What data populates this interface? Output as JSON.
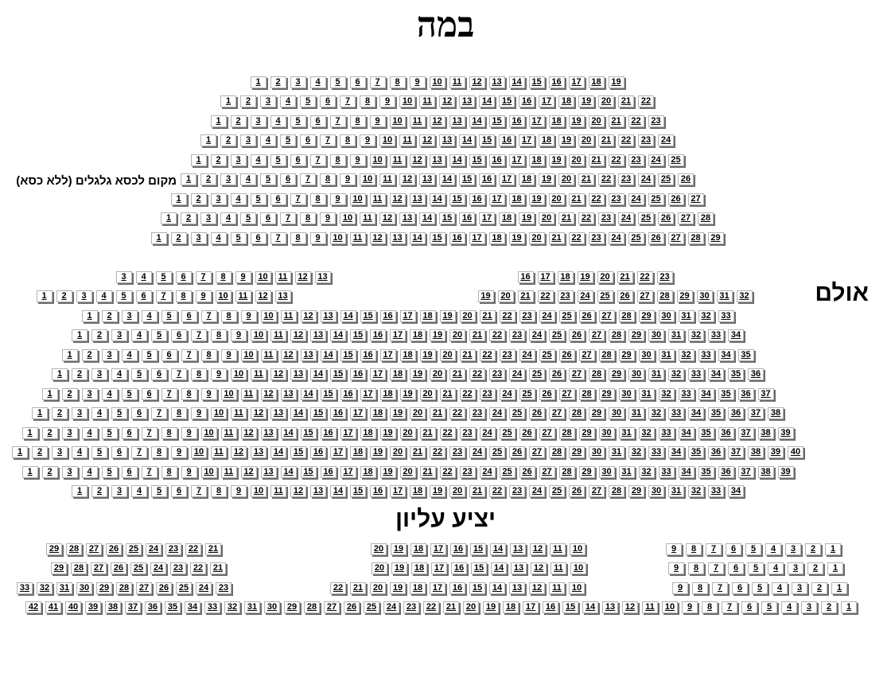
{
  "page": {
    "title": "במה",
    "hall_label": "אולם",
    "balcony_label": "יציע עליון"
  },
  "colors": {
    "background": "#ffffff",
    "seat_border": "#b3b3b3",
    "seat_shadow": "#6b6b6b",
    "text": "#000000"
  },
  "seatmap": {
    "front": {
      "rows": [
        {
          "groups": [
            {
              "from": 1,
              "to": 19
            }
          ]
        },
        {
          "groups": [
            {
              "from": 1,
              "to": 22
            }
          ]
        },
        {
          "groups": [
            {
              "from": 1,
              "to": 23
            }
          ]
        },
        {
          "groups": [
            {
              "from": 1,
              "to": 24
            }
          ]
        },
        {
          "groups": [
            {
              "from": 1,
              "to": 25
            }
          ]
        },
        {
          "groups": [
            {
              "from": 1,
              "to": 26
            }
          ],
          "note": "מקום לכסא גלגלים (ללא כסא)"
        },
        {
          "groups": [
            {
              "from": 1,
              "to": 27
            }
          ]
        },
        {
          "groups": [
            {
              "from": 1,
              "to": 28
            }
          ]
        },
        {
          "groups": [
            {
              "from": 1,
              "to": 29
            }
          ]
        }
      ]
    },
    "hall": {
      "rows": [
        {
          "groups": [
            {
              "from": 3,
              "to": 13
            },
            {
              "from": 16,
              "to": 23
            }
          ]
        },
        {
          "groups": [
            {
              "from": 1,
              "to": 13
            },
            {
              "from": 19,
              "to": 32
            }
          ]
        },
        {
          "groups": [
            {
              "from": 1,
              "to": 33
            }
          ]
        },
        {
          "groups": [
            {
              "from": 1,
              "to": 34
            }
          ]
        },
        {
          "groups": [
            {
              "from": 1,
              "to": 35
            }
          ]
        },
        {
          "groups": [
            {
              "from": 1,
              "to": 36
            }
          ]
        },
        {
          "groups": [
            {
              "from": 1,
              "to": 37
            }
          ]
        },
        {
          "groups": [
            {
              "from": 1,
              "to": 38
            }
          ]
        },
        {
          "groups": [
            {
              "from": 1,
              "to": 39
            }
          ]
        },
        {
          "groups": [
            {
              "from": 1,
              "to": 40
            }
          ]
        },
        {
          "groups": [
            {
              "from": 1,
              "to": 39
            }
          ]
        },
        {
          "groups": [
            {
              "from": 1,
              "to": 34
            }
          ]
        }
      ]
    },
    "balcony": {
      "rows": [
        {
          "groups": [
            {
              "from": 29,
              "to": 21
            },
            {
              "from": 20,
              "to": 10
            },
            {
              "from": 9,
              "to": 1
            }
          ]
        },
        {
          "groups": [
            {
              "from": 29,
              "to": 21
            },
            {
              "from": 20,
              "to": 10
            },
            {
              "from": 9,
              "to": 1
            }
          ]
        },
        {
          "groups": [
            {
              "from": 33,
              "to": 23
            },
            {
              "from": 22,
              "to": 10
            },
            {
              "from": 9,
              "to": 1
            }
          ]
        },
        {
          "groups": [
            {
              "from": 42,
              "to": 1
            }
          ]
        }
      ]
    }
  }
}
